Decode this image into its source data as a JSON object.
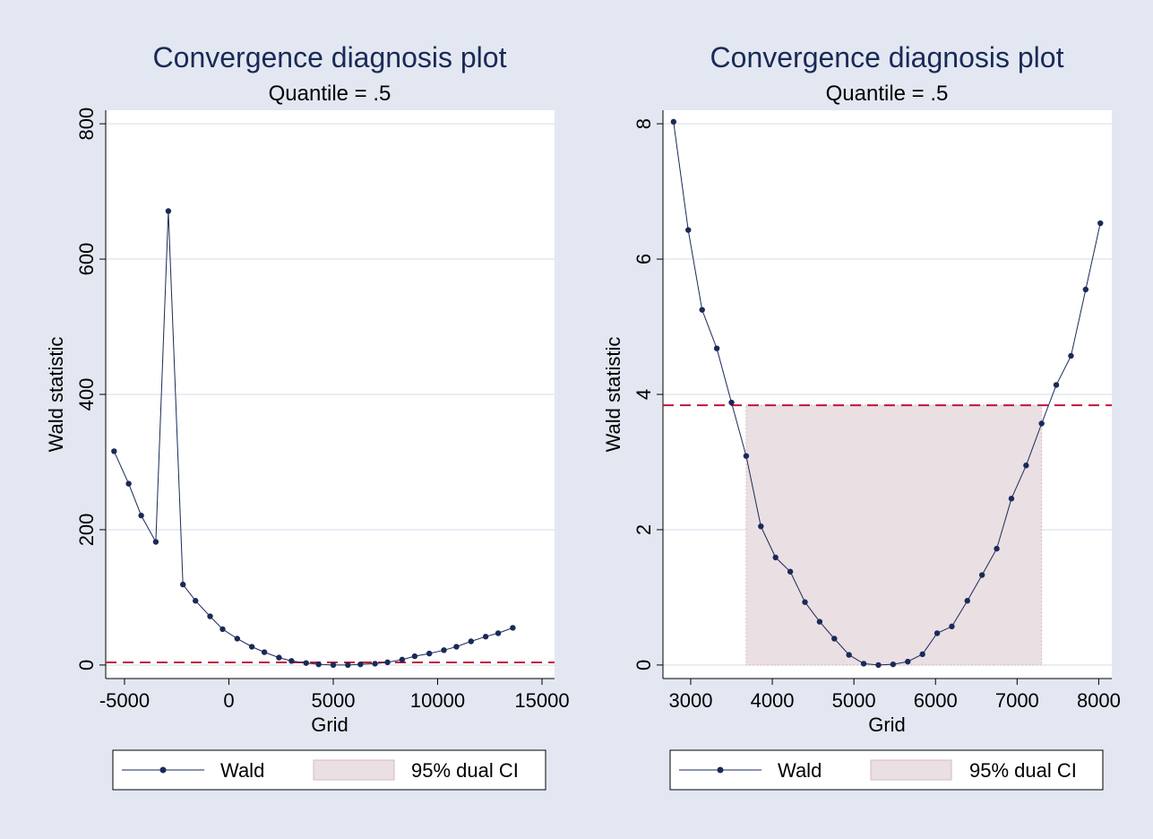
{
  "chart_data": [
    {
      "type": "line",
      "title": "Convergence diagnosis plot",
      "subtitle": "Quantile = .5",
      "xlabel": "Grid",
      "ylabel": "Wald statistic",
      "xlim": [
        -5900,
        15600
      ],
      "ylim": [
        -20,
        820
      ],
      "xticks": [
        -5000,
        0,
        5000,
        10000,
        15000
      ],
      "xtick_labels": [
        "-5000",
        "0",
        "5000",
        "10000",
        "15000"
      ],
      "yticks": [
        0,
        200,
        400,
        600,
        800
      ],
      "ytick_labels": [
        "0",
        "200",
        "400",
        "600",
        "800"
      ],
      "grid": true,
      "critical_value": 3.84,
      "ci": null,
      "series": [
        {
          "name": "Wald",
          "x": [
            -5500,
            -4800,
            -4200,
            -3500,
            -2900,
            -2200,
            -1600,
            -900,
            -300,
            400,
            1100,
            1700,
            2400,
            3000,
            3700,
            4300,
            5000,
            5700,
            6300,
            7000,
            7600,
            8300,
            8900,
            9600,
            10300,
            10900,
            11600,
            12300,
            12900,
            13600
          ],
          "y": [
            316,
            268,
            221,
            182,
            671,
            119,
            95,
            72,
            53,
            39,
            27,
            19,
            11,
            6,
            3,
            1,
            0,
            0,
            1,
            2,
            4,
            8,
            13,
            17,
            22,
            27,
            35,
            42,
            47,
            55
          ]
        },
        {
          "name": "95% dual CI",
          "x": [],
          "y": []
        }
      ],
      "legend_position": "bottom",
      "legend": [
        "Wald",
        "95% dual CI"
      ]
    },
    {
      "type": "line",
      "title": "Convergence diagnosis plot",
      "subtitle": "Quantile = .5",
      "xlabel": "Grid",
      "ylabel": "Wald statistic",
      "xlim": [
        2660,
        8160
      ],
      "ylim": [
        -0.2,
        8.2
      ],
      "xticks": [
        3000,
        4000,
        5000,
        6000,
        7000,
        8000
      ],
      "xtick_labels": [
        "3000",
        "4000",
        "5000",
        "6000",
        "7000",
        "8000"
      ],
      "yticks": [
        0,
        2,
        4,
        6,
        8
      ],
      "ytick_labels": [
        "0",
        "2",
        "4",
        "6",
        "8"
      ],
      "grid": true,
      "critical_value": 3.84,
      "ci": [
        3680,
        7300
      ],
      "series": [
        {
          "name": "Wald",
          "x": [
            2790,
            2970,
            3140,
            3320,
            3500,
            3680,
            3860,
            4040,
            4220,
            4400,
            4580,
            4760,
            4940,
            5120,
            5300,
            5480,
            5660,
            5840,
            6020,
            6200,
            6390,
            6570,
            6750,
            6930,
            7110,
            7300,
            7480,
            7660,
            7840,
            8020
          ],
          "y": [
            8.03,
            6.43,
            5.25,
            4.68,
            3.88,
            3.09,
            2.05,
            1.59,
            1.38,
            0.93,
            0.64,
            0.39,
            0.15,
            0.02,
            0.0,
            0.01,
            0.05,
            0.16,
            0.47,
            0.57,
            0.95,
            1.33,
            1.72,
            2.46,
            2.95,
            3.57,
            4.14,
            4.57,
            5.55,
            6.53
          ]
        },
        {
          "name": "95% dual CI",
          "x": [
            3680,
            7300
          ],
          "y": [
            3.84,
            3.84
          ]
        }
      ],
      "legend_position": "bottom",
      "legend": [
        "Wald",
        "95% dual CI"
      ]
    }
  ],
  "colors": {
    "background": "#e2e7f1",
    "plot_background": "#ffffff",
    "grid": "#e2e7f1",
    "line": "#1a2a57",
    "critical_line": "#c0143c",
    "ci_fill": "#eadfe3",
    "ci_edge": "#d6b8c1",
    "title": "#1a2a57",
    "text": "#000000"
  }
}
